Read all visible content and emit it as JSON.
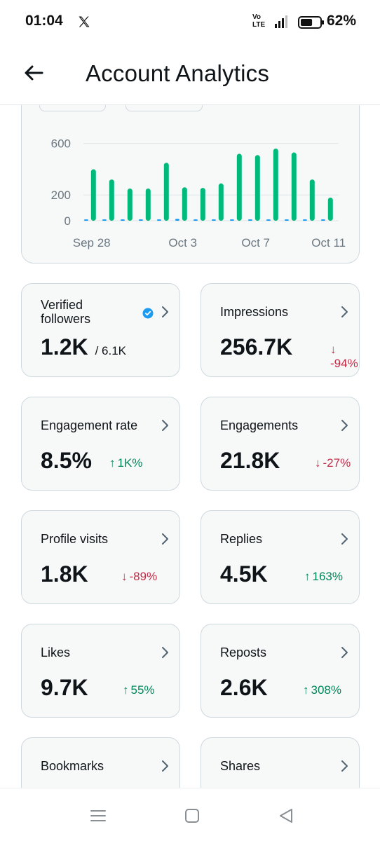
{
  "status_bar": {
    "time": "01:04",
    "network_label": "Vo\nLTE",
    "battery_percent": "62%",
    "battery_level": 0.62
  },
  "header": {
    "title": "Account Analytics",
    "back_icon": "arrow-left-icon"
  },
  "chart_data": {
    "type": "bar",
    "series": [
      {
        "name": "",
        "color": "#00ba7c",
        "values": [
          400,
          320,
          250,
          250,
          450,
          260,
          255,
          290,
          520,
          510,
          560,
          530,
          320,
          180
        ]
      },
      {
        "name": "",
        "color": "#1d9bf0",
        "values": [
          5,
          5,
          5,
          5,
          5,
          15,
          5,
          10,
          5,
          5,
          5,
          5,
          5,
          5
        ]
      }
    ],
    "x_tick_labels": [
      "Sep 28",
      "Oct 3",
      "Oct 7",
      "Oct 11"
    ],
    "y_tick_labels": [
      "600",
      "200",
      "0"
    ],
    "y_ticks": [
      600,
      200,
      0
    ],
    "ylim": [
      0,
      620
    ],
    "grid": true
  },
  "metrics": [
    {
      "label": "Verified followers",
      "value": "1.2K",
      "sub": "/ 6.1K",
      "change": "",
      "direction": "",
      "verified_icon": "verified-badge-icon"
    },
    {
      "label": "Impressions",
      "value": "256.7K",
      "change": "-94%",
      "direction": "down"
    },
    {
      "label": "Engagement rate",
      "value": "8.5%",
      "change": "1K%",
      "direction": "up"
    },
    {
      "label": "Engagements",
      "value": "21.8K",
      "change": "-27%",
      "direction": "down"
    },
    {
      "label": "Profile visits",
      "value": "1.8K",
      "change": "-89%",
      "direction": "down"
    },
    {
      "label": "Replies",
      "value": "4.5K",
      "change": "163%",
      "direction": "up"
    },
    {
      "label": "Likes",
      "value": "9.7K",
      "change": "55%",
      "direction": "up"
    },
    {
      "label": "Reposts",
      "value": "2.6K",
      "change": "308%",
      "direction": "up"
    },
    {
      "label": "Bookmarks",
      "value": "",
      "change": "",
      "direction": ""
    },
    {
      "label": "Shares",
      "value": "",
      "change": "",
      "direction": ""
    }
  ],
  "arrows": {
    "up": "↑",
    "down": "↓"
  },
  "colors": {
    "up": "#00875a",
    "down": "#c62a47",
    "accent_green": "#00ba7c",
    "accent_blue": "#1d9bf0"
  },
  "nav_bar": {
    "icons": [
      "menu-icon",
      "home-square-icon",
      "back-triangle-icon"
    ]
  }
}
